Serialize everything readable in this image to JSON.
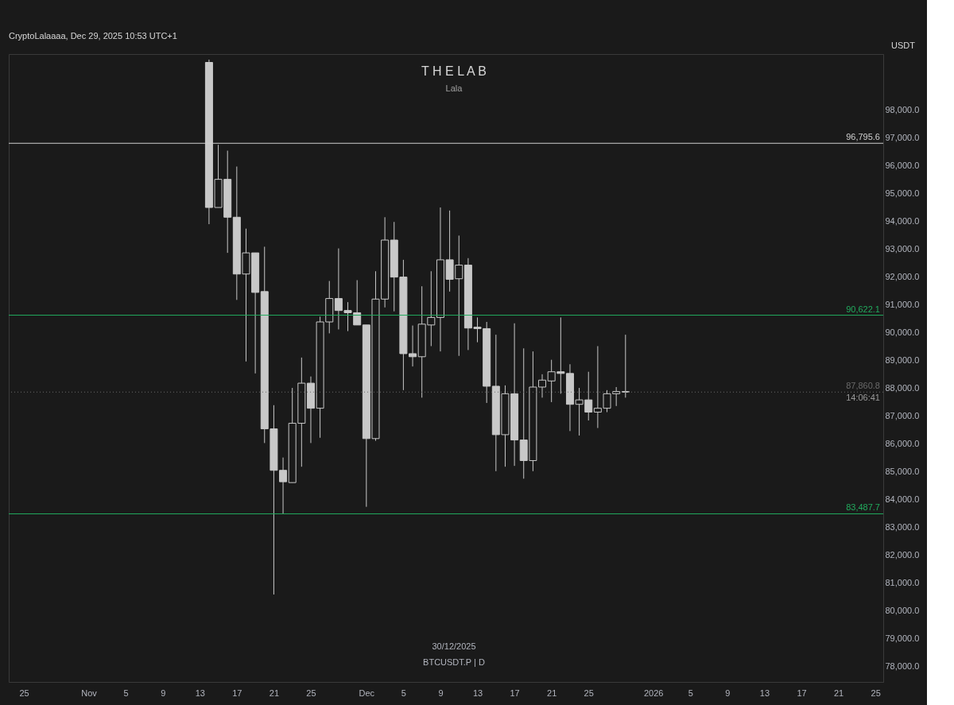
{
  "chart_data": {
    "type": "candlestick",
    "title": "T H E  L A B",
    "subtitle": "Lala",
    "ylabel": "USDT",
    "annotations": [
      "CryptoLalaaaa, Dec 29, 2025 10:53 UTC+1",
      "30/12/2025",
      "BTCUSDT.P | D",
      "14:06:41"
    ],
    "color": "#c8c8c8",
    "x": [
      "2025-11-14",
      "2025-11-15",
      "2025-11-16",
      "2025-11-17",
      "2025-11-18",
      "2025-11-19",
      "2025-11-20",
      "2025-11-21",
      "2025-11-22",
      "2025-11-23",
      "2025-11-24",
      "2025-11-25",
      "2025-11-26",
      "2025-11-27",
      "2025-11-28",
      "2025-11-29",
      "2025-11-30",
      "2025-12-01",
      "2025-12-02",
      "2025-12-03",
      "2025-12-04",
      "2025-12-05",
      "2025-12-06",
      "2025-12-07",
      "2025-12-08",
      "2025-12-09",
      "2025-12-10",
      "2025-12-11",
      "2025-12-12",
      "2025-12-13",
      "2025-12-14",
      "2025-12-15",
      "2025-12-16",
      "2025-12-17",
      "2025-12-18",
      "2025-12-19",
      "2025-12-20",
      "2025-12-21",
      "2025-12-22",
      "2025-12-23",
      "2025-12-24",
      "2025-12-25",
      "2025-12-26",
      "2025-12-27",
      "2025-12-28",
      "2025-12-29"
    ],
    "ohlc": [
      [
        99700,
        99800,
        93890,
        94490
      ],
      [
        94490,
        96740,
        94490,
        95500
      ],
      [
        95500,
        96530,
        92860,
        94140
      ],
      [
        94140,
        95960,
        91170,
        92100
      ],
      [
        92100,
        93730,
        88960,
        92860
      ],
      [
        92860,
        92860,
        88530,
        91440
      ],
      [
        91470,
        93080,
        86030,
        86540
      ],
      [
        86540,
        87390,
        80590,
        85050
      ],
      [
        85050,
        85510,
        83490,
        84640
      ],
      [
        84610,
        88010,
        84610,
        86740
      ],
      [
        86740,
        89100,
        85180,
        88180
      ],
      [
        88180,
        88420,
        86030,
        87280
      ],
      [
        87280,
        90570,
        86220,
        90380
      ],
      [
        90380,
        91850,
        89970,
        91220
      ],
      [
        91220,
        93020,
        90110,
        90790
      ],
      [
        90790,
        91090,
        90050,
        90710
      ],
      [
        90710,
        91880,
        90270,
        90270
      ],
      [
        90270,
        90270,
        83740,
        86190
      ],
      [
        86190,
        92200,
        86110,
        91200
      ],
      [
        91200,
        94140,
        90900,
        93320
      ],
      [
        93320,
        93970,
        90760,
        91990
      ],
      [
        91990,
        92610,
        87930,
        89240
      ],
      [
        89240,
        90250,
        88780,
        89130
      ],
      [
        89130,
        91660,
        87660,
        90300
      ],
      [
        90270,
        92200,
        89510,
        90540
      ],
      [
        90540,
        94490,
        89320,
        92610
      ],
      [
        92610,
        94380,
        91470,
        91910
      ],
      [
        91930,
        93480,
        89160,
        92420
      ],
      [
        92420,
        92670,
        89370,
        90160
      ],
      [
        90190,
        90540,
        89650,
        90140
      ],
      [
        90140,
        90380,
        87470,
        88070
      ],
      [
        88070,
        89920,
        85020,
        86330
      ],
      [
        86330,
        88100,
        85180,
        87800
      ],
      [
        87800,
        90330,
        85210,
        86140
      ],
      [
        86140,
        89430,
        84750,
        85400
      ],
      [
        85400,
        89320,
        85020,
        88040
      ],
      [
        88040,
        88500,
        87660,
        88290
      ],
      [
        88260,
        89020,
        87500,
        88590
      ],
      [
        88590,
        90540,
        87800,
        88530
      ],
      [
        88530,
        88860,
        86460,
        87420
      ],
      [
        87420,
        88010,
        86300,
        87580
      ],
      [
        87580,
        88590,
        86840,
        87140
      ],
      [
        87140,
        89510,
        86570,
        87280
      ],
      [
        87280,
        87930,
        87140,
        87800
      ],
      [
        87800,
        88040,
        87360,
        87880
      ],
      [
        87880,
        89920,
        87660,
        87860
      ]
    ],
    "xlim": [
      "2025-10-23T19:00",
      "2026-01-25T10:00"
    ],
    "ylim": [
      77450,
      100000
    ],
    "xticks": [
      {
        "value": "2025-10-25",
        "label": "25"
      },
      {
        "value": "2025-11-01",
        "label": "Nov"
      },
      {
        "value": "2025-11-05",
        "label": "5"
      },
      {
        "value": "2025-11-09",
        "label": "9"
      },
      {
        "value": "2025-11-13",
        "label": "13"
      },
      {
        "value": "2025-11-17",
        "label": "17"
      },
      {
        "value": "2025-11-21",
        "label": "21"
      },
      {
        "value": "2025-11-25",
        "label": "25"
      },
      {
        "value": "2025-12-01",
        "label": "Dec"
      },
      {
        "value": "2025-12-05",
        "label": "5"
      },
      {
        "value": "2025-12-09",
        "label": "9"
      },
      {
        "value": "2025-12-13",
        "label": "13"
      },
      {
        "value": "2025-12-17",
        "label": "17"
      },
      {
        "value": "2025-12-21",
        "label": "21"
      },
      {
        "value": "2025-12-25",
        "label": "25"
      },
      {
        "value": "2026-01-01",
        "label": "2026"
      },
      {
        "value": "2026-01-05",
        "label": "5"
      },
      {
        "value": "2026-01-09",
        "label": "9"
      },
      {
        "value": "2026-01-13",
        "label": "13"
      },
      {
        "value": "2026-01-17",
        "label": "17"
      },
      {
        "value": "2026-01-21",
        "label": "21"
      },
      {
        "value": "2026-01-25",
        "label": "25"
      }
    ],
    "yticks": [
      {
        "value": 78000,
        "label": "78,000.0"
      },
      {
        "value": 79000,
        "label": "79,000.0"
      },
      {
        "value": 80000,
        "label": "80,000.0"
      },
      {
        "value": 81000,
        "label": "81,000.0"
      },
      {
        "value": 82000,
        "label": "82,000.0"
      },
      {
        "value": 83000,
        "label": "83,000.0"
      },
      {
        "value": 84000,
        "label": "84,000.0"
      },
      {
        "value": 85000,
        "label": "85,000.0"
      },
      {
        "value": 86000,
        "label": "86,000.0"
      },
      {
        "value": 87000,
        "label": "87,000.0"
      },
      {
        "value": 88000,
        "label": "88,000.0"
      },
      {
        "value": 89000,
        "label": "89,000.0"
      },
      {
        "value": 90000,
        "label": "90,000.0"
      },
      {
        "value": 91000,
        "label": "91,000.0"
      },
      {
        "value": 92000,
        "label": "92,000.0"
      },
      {
        "value": 93000,
        "label": "93,000.0"
      },
      {
        "value": 94000,
        "label": "94,000.0"
      },
      {
        "value": 95000,
        "label": "95,000.0"
      },
      {
        "value": 96000,
        "label": "96,000.0"
      },
      {
        "value": 97000,
        "label": "97,000.0"
      },
      {
        "value": 98000,
        "label": "98,000.0"
      }
    ],
    "ref_lines": [
      {
        "axis": "y",
        "value": 96795.6,
        "label": "96,795.6",
        "color": "#d0d0d0"
      },
      {
        "axis": "y",
        "value": 90622.1,
        "label": "90,622.1",
        "color": "#22ab5e"
      },
      {
        "axis": "y",
        "value": 87860.8,
        "label": "87,860.8",
        "color": "#6a6a6a",
        "line_style": "dotted"
      },
      {
        "axis": "y",
        "value": 83487.7,
        "label": "83,487.7",
        "color": "#22ab5e"
      }
    ]
  }
}
